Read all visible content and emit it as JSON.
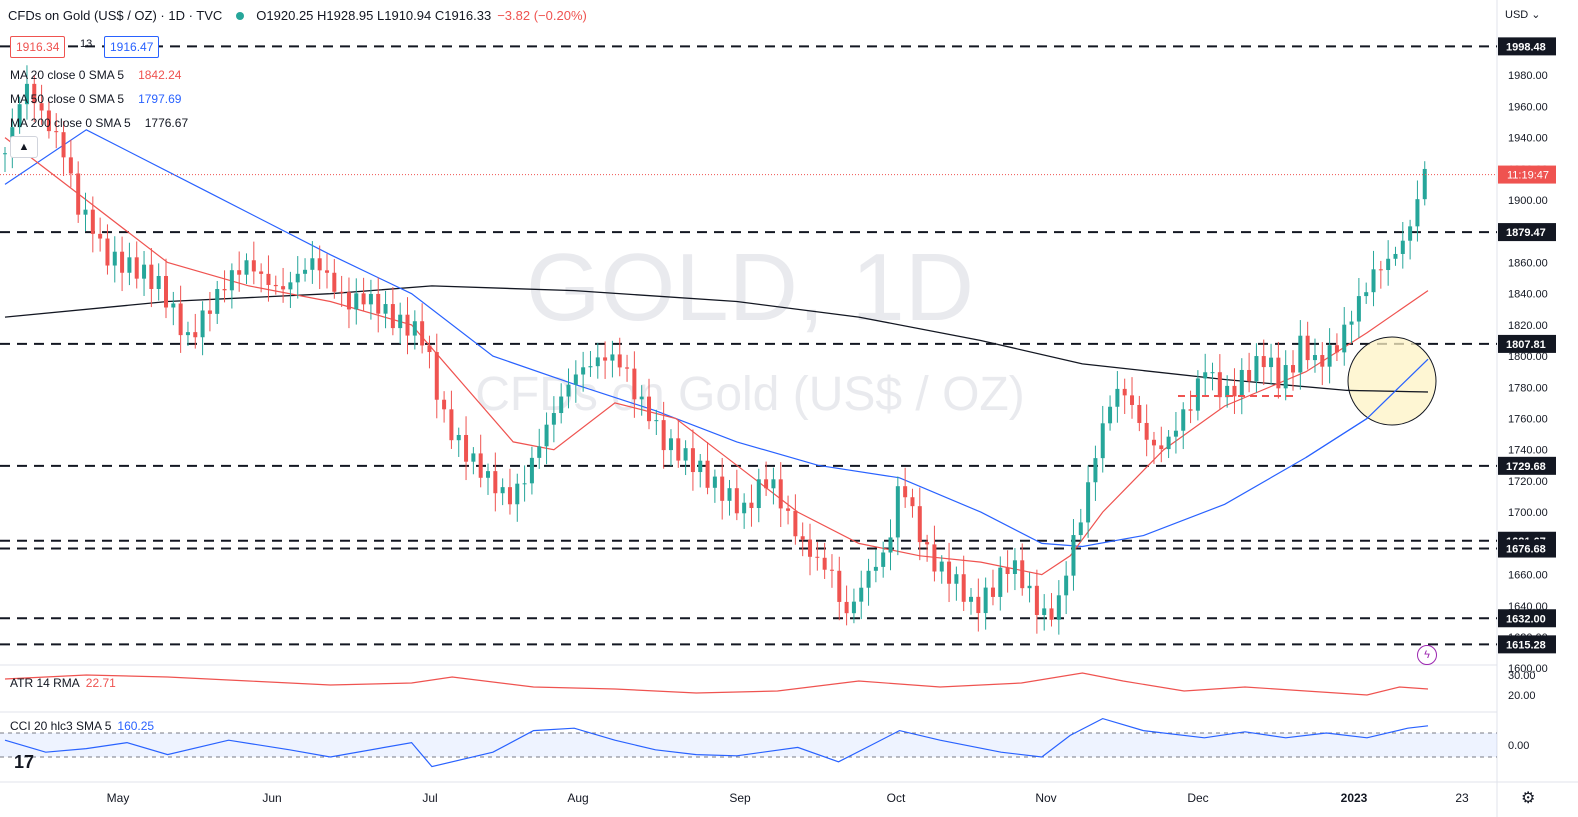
{
  "header": {
    "title": "CFDs on Gold (US$ / OZ) · 1D · TVC",
    "ohlc": "O1920.25 H1928.95 L1910.94 C1916.33",
    "change": "−3.82 (−0.20%)",
    "currency": "USD"
  },
  "quote": {
    "bid": "1916.34",
    "spread": "13",
    "ask": "1916.47"
  },
  "moving_averages": [
    {
      "label": "MA 20 close 0 SMA 5",
      "value": "1842.24",
      "color": "#ef5350"
    },
    {
      "label": "MA 50 close 0 SMA 5",
      "value": "1797.69",
      "color": "#2962ff"
    },
    {
      "label": "MA 200 close 0 SMA 5",
      "value": "1776.67",
      "color": "#131722"
    }
  ],
  "indicators": {
    "atr": {
      "label": "ATR 14 RMA",
      "value": "22.71",
      "color": "#ef5350"
    },
    "cci": {
      "label": "CCI 20 hlc3 SMA 5",
      "value": "160.25",
      "color": "#2962ff"
    }
  },
  "watermark": {
    "symbol": "GOLD, 1D",
    "name": "CFDs on Gold (US$ / OZ)"
  },
  "countdown": "11:19:47",
  "chart_data": {
    "type": "candlestick",
    "x_ticks": [
      "May",
      "Jun",
      "Jul",
      "Aug",
      "Sep",
      "Oct",
      "Nov",
      "Dec",
      "2023",
      "23"
    ],
    "y_ticks": [
      1600,
      1620,
      1640,
      1660,
      1680,
      1700,
      1720,
      1740,
      1760,
      1780,
      1800,
      1820,
      1840,
      1860,
      1880,
      1900,
      1920,
      1940,
      1960,
      1980
    ],
    "ylim": [
      1595,
      2000
    ],
    "last_price": 1916.33,
    "horizontal_levels": [
      1998.48,
      1879.47,
      1807.81,
      1729.68,
      1681.67,
      1676.68,
      1632.0,
      1615.28
    ],
    "level_labels": [
      "1998.48",
      "1879.47",
      "1807.81",
      "1729.68",
      "1681.67",
      "1676.68",
      "1632.00",
      "1615.28"
    ],
    "close_path": [
      [
        0,
        1930
      ],
      [
        5,
        1975
      ],
      [
        10,
        1950
      ],
      [
        14,
        1935
      ],
      [
        18,
        1895
      ],
      [
        22,
        1882
      ],
      [
        24,
        1865
      ],
      [
        28,
        1860
      ],
      [
        33,
        1855
      ],
      [
        38,
        1845
      ],
      [
        42,
        1825
      ],
      [
        45,
        1810
      ],
      [
        50,
        1830
      ],
      [
        55,
        1850
      ],
      [
        60,
        1860
      ],
      [
        64,
        1848
      ],
      [
        68,
        1842
      ],
      [
        72,
        1852
      ],
      [
        76,
        1862
      ],
      [
        80,
        1848
      ],
      [
        84,
        1833
      ],
      [
        88,
        1838
      ],
      [
        92,
        1832
      ],
      [
        96,
        1822
      ],
      [
        100,
        1818
      ],
      [
        103,
        1812
      ],
      [
        105,
        1790
      ],
      [
        108,
        1760
      ],
      [
        112,
        1742
      ],
      [
        116,
        1730
      ],
      [
        120,
        1718
      ],
      [
        124,
        1708
      ],
      [
        128,
        1722
      ],
      [
        132,
        1748
      ],
      [
        136,
        1770
      ],
      [
        140,
        1788
      ],
      [
        144,
        1795
      ],
      [
        148,
        1800
      ],
      [
        152,
        1795
      ],
      [
        155,
        1775
      ],
      [
        158,
        1765
      ],
      [
        162,
        1745
      ],
      [
        166,
        1738
      ],
      [
        170,
        1730
      ],
      [
        174,
        1718
      ],
      [
        178,
        1710
      ],
      [
        182,
        1700
      ],
      [
        185,
        1715
      ],
      [
        188,
        1722
      ],
      [
        192,
        1700
      ],
      [
        196,
        1680
      ],
      [
        200,
        1668
      ],
      [
        204,
        1660
      ],
      [
        206,
        1632
      ],
      [
        208,
        1638
      ],
      [
        212,
        1660
      ],
      [
        216,
        1672
      ],
      [
        218,
        1688
      ],
      [
        220,
        1720
      ],
      [
        222,
        1710
      ],
      [
        225,
        1685
      ],
      [
        228,
        1668
      ],
      [
        232,
        1660
      ],
      [
        235,
        1652
      ],
      [
        238,
        1638
      ],
      [
        241,
        1645
      ],
      [
        244,
        1655
      ],
      [
        247,
        1668
      ],
      [
        250,
        1658
      ],
      [
        253,
        1642
      ],
      [
        256,
        1632
      ],
      [
        259,
        1640
      ],
      [
        262,
        1675
      ],
      [
        265,
        1700
      ],
      [
        268,
        1735
      ],
      [
        271,
        1765
      ],
      [
        274,
        1780
      ],
      [
        277,
        1770
      ],
      [
        280,
        1750
      ],
      [
        283,
        1740
      ],
      [
        286,
        1745
      ],
      [
        289,
        1760
      ],
      [
        292,
        1770
      ],
      [
        295,
        1795
      ],
      [
        298,
        1780
      ],
      [
        301,
        1775
      ],
      [
        304,
        1785
      ],
      [
        307,
        1792
      ],
      [
        310,
        1800
      ],
      [
        313,
        1785
      ],
      [
        316,
        1790
      ],
      [
        319,
        1810
      ],
      [
        322,
        1795
      ],
      [
        325,
        1800
      ],
      [
        328,
        1808
      ],
      [
        331,
        1825
      ],
      [
        334,
        1840
      ],
      [
        337,
        1855
      ],
      [
        340,
        1860
      ],
      [
        343,
        1870
      ],
      [
        345,
        1878
      ],
      [
        347,
        1896
      ],
      [
        349,
        1920
      ],
      [
        350,
        1916
      ]
    ],
    "ma_20_path": [
      [
        0,
        1940
      ],
      [
        20,
        1900
      ],
      [
        40,
        1860
      ],
      [
        60,
        1845
      ],
      [
        80,
        1835
      ],
      [
        100,
        1820
      ],
      [
        110,
        1790
      ],
      [
        125,
        1745
      ],
      [
        135,
        1740
      ],
      [
        150,
        1770
      ],
      [
        165,
        1760
      ],
      [
        180,
        1730
      ],
      [
        195,
        1700
      ],
      [
        210,
        1680
      ],
      [
        225,
        1672
      ],
      [
        240,
        1668
      ],
      [
        255,
        1660
      ],
      [
        262,
        1672
      ],
      [
        270,
        1700
      ],
      [
        285,
        1740
      ],
      [
        300,
        1768
      ],
      [
        320,
        1790
      ],
      [
        335,
        1815
      ],
      [
        350,
        1842
      ]
    ],
    "ma_50_path": [
      [
        0,
        1910
      ],
      [
        20,
        1945
      ],
      [
        50,
        1905
      ],
      [
        80,
        1865
      ],
      [
        100,
        1840
      ],
      [
        120,
        1800
      ],
      [
        140,
        1782
      ],
      [
        160,
        1765
      ],
      [
        180,
        1745
      ],
      [
        200,
        1730
      ],
      [
        220,
        1722
      ],
      [
        240,
        1700
      ],
      [
        255,
        1680
      ],
      [
        265,
        1678
      ],
      [
        280,
        1685
      ],
      [
        300,
        1705
      ],
      [
        320,
        1735
      ],
      [
        335,
        1760
      ],
      [
        350,
        1798
      ]
    ],
    "ma_200_path": [
      [
        0,
        1825
      ],
      [
        40,
        1835
      ],
      [
        80,
        1840
      ],
      [
        105,
        1845
      ],
      [
        140,
        1842
      ],
      [
        180,
        1835
      ],
      [
        210,
        1825
      ],
      [
        240,
        1810
      ],
      [
        265,
        1795
      ],
      [
        300,
        1785
      ],
      [
        330,
        1778
      ],
      [
        350,
        1777
      ]
    ],
    "atr_path": [
      [
        0,
        28
      ],
      [
        20,
        30
      ],
      [
        40,
        29
      ],
      [
        60,
        27
      ],
      [
        80,
        25
      ],
      [
        100,
        26
      ],
      [
        110,
        29
      ],
      [
        130,
        24
      ],
      [
        150,
        23
      ],
      [
        170,
        21
      ],
      [
        190,
        22
      ],
      [
        210,
        27
      ],
      [
        230,
        24
      ],
      [
        250,
        26
      ],
      [
        265,
        31
      ],
      [
        275,
        27
      ],
      [
        290,
        22
      ],
      [
        305,
        24
      ],
      [
        320,
        22
      ],
      [
        335,
        20
      ],
      [
        343,
        24
      ],
      [
        350,
        23
      ]
    ],
    "cci_path": [
      [
        0,
        40
      ],
      [
        10,
        -60
      ],
      [
        20,
        -30
      ],
      [
        30,
        20
      ],
      [
        40,
        -80
      ],
      [
        55,
        40
      ],
      [
        70,
        -40
      ],
      [
        80,
        -100
      ],
      [
        100,
        20
      ],
      [
        105,
        -180
      ],
      [
        120,
        -60
      ],
      [
        130,
        120
      ],
      [
        140,
        140
      ],
      [
        150,
        40
      ],
      [
        160,
        -40
      ],
      [
        170,
        -80
      ],
      [
        180,
        -90
      ],
      [
        195,
        -20
      ],
      [
        205,
        -140
      ],
      [
        212,
        -20
      ],
      [
        220,
        120
      ],
      [
        230,
        40
      ],
      [
        245,
        -60
      ],
      [
        255,
        -100
      ],
      [
        262,
        80
      ],
      [
        270,
        220
      ],
      [
        280,
        120
      ],
      [
        295,
        60
      ],
      [
        305,
        110
      ],
      [
        315,
        60
      ],
      [
        325,
        100
      ],
      [
        335,
        60
      ],
      [
        345,
        140
      ],
      [
        350,
        160
      ]
    ]
  }
}
